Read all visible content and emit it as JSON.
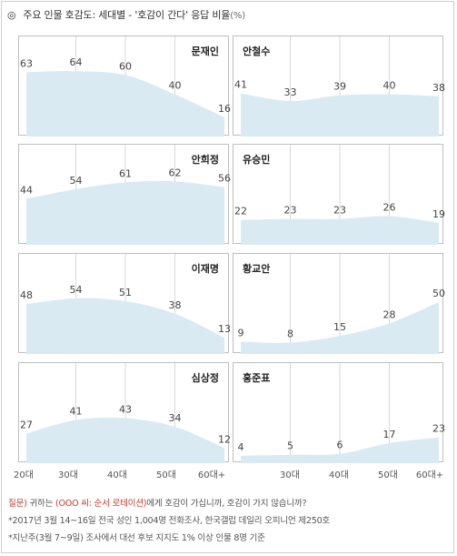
{
  "title": {
    "symbol": "◎",
    "text": "주요 인물 호감도: 세대별 - '호감이 간다' 응답 비율",
    "unit": "(%)"
  },
  "chart_data": {
    "type": "area",
    "categories": [
      "20대",
      "30대",
      "40대",
      "50대",
      "60대+"
    ],
    "ylim": [
      0,
      100
    ],
    "fill_color": "#daeaf2",
    "panels": [
      {
        "name": "문재인",
        "values": [
          63,
          64,
          60,
          40,
          16
        ]
      },
      {
        "name": "안철수",
        "values": [
          41,
          33,
          39,
          40,
          38
        ]
      },
      {
        "name": "안희정",
        "values": [
          44,
          54,
          61,
          62,
          56
        ]
      },
      {
        "name": "유승민",
        "values": [
          22,
          23,
          23,
          26,
          19
        ]
      },
      {
        "name": "이재명",
        "values": [
          48,
          54,
          51,
          38,
          13
        ]
      },
      {
        "name": "황교안",
        "values": [
          9,
          8,
          15,
          28,
          50
        ]
      },
      {
        "name": "심상정",
        "values": [
          27,
          41,
          43,
          34,
          12
        ]
      },
      {
        "name": "홍준표",
        "values": [
          4,
          5,
          6,
          17,
          23
        ]
      }
    ]
  },
  "notes": {
    "question_label": "질문)",
    "question_pre": " 귀하는 ",
    "question_hl": "(OOO 씨: 순서 로테이션)",
    "question_post": "에게 호감이 가십니까, 호감이 가지 않습니까?",
    "line2": "*2017년 3월 14~16일 전국 성인 1,004명 전화조사, 한국갤럽 데일리 오피니언 제250호",
    "line3": "*지난주(3월 7~9일) 조사에서 대선 후보 지지도 1% 이상 인물 8명 기준"
  }
}
